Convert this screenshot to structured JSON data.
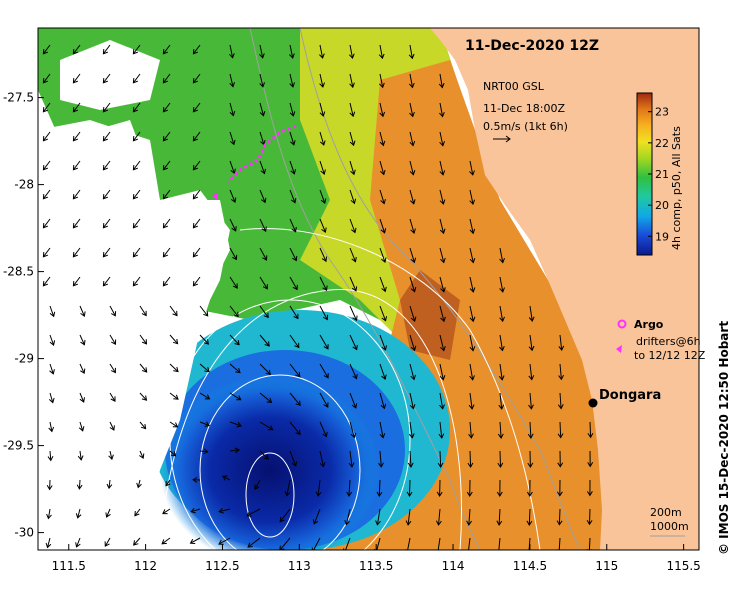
{
  "title": "11-Dec-2020 12Z",
  "current_note": {
    "line1": "NRT00 GSL",
    "line2": "11-Dec 18:00Z",
    "line3": "0.5m/s (1kt 6h)"
  },
  "colorbar": {
    "label": "4h comp, p50, All Sats",
    "ticks": [
      "19",
      "20",
      "21",
      "22",
      "23"
    ],
    "range": [
      18.4,
      23.6
    ]
  },
  "axes": {
    "x_ticks": [
      "111.5",
      "112",
      "112.5",
      "113",
      "113.5",
      "114",
      "114.5",
      "115",
      "115.5"
    ],
    "y_ticks": [
      "-27.5",
      "-28",
      "-28.5",
      "-29",
      "-29.5",
      "-30"
    ],
    "x_range": [
      111.3,
      115.6
    ],
    "y_range": [
      -30.1,
      -27.1
    ]
  },
  "place": {
    "name": "Dongara",
    "lon": 114.93,
    "lat": -29.25
  },
  "legend": {
    "argo_label": "Argo",
    "drifter_line1": "drifters@6h",
    "drifter_line2": "to 12/12 12Z"
  },
  "depth_contours": {
    "label1": "200m",
    "label2": "1000m"
  },
  "credit": "© IMOS 15-Dec-2020 12:50 Hobart",
  "colors": {
    "land": "#f9c49a",
    "warm": "#e8902c",
    "cold": "#0a1a8c",
    "magenta": "#ff30ff",
    "contour": "#ffffff",
    "isobath": "#a0a0a0"
  },
  "chart_data": {
    "type": "heatmap",
    "title": "11-Dec-2020 12Z",
    "xlabel": "",
    "ylabel": "",
    "variable": "sea surface temperature (4h comp, p50, All Sats)",
    "colorbar_ticks": [
      19,
      20,
      21,
      22,
      23
    ],
    "xlim": [
      111.3,
      115.6
    ],
    "ylim": [
      -30.1,
      -27.1
    ],
    "features": [
      {
        "name": "cold eddy core",
        "lon": 112.8,
        "lat": -29.75,
        "temp": 18.6
      },
      {
        "name": "warm shelf water",
        "lon": 114.3,
        "lat": -29.3,
        "temp": 22.9
      },
      {
        "name": "Dongara",
        "lon": 114.93,
        "lat": -29.25
      }
    ]
  }
}
